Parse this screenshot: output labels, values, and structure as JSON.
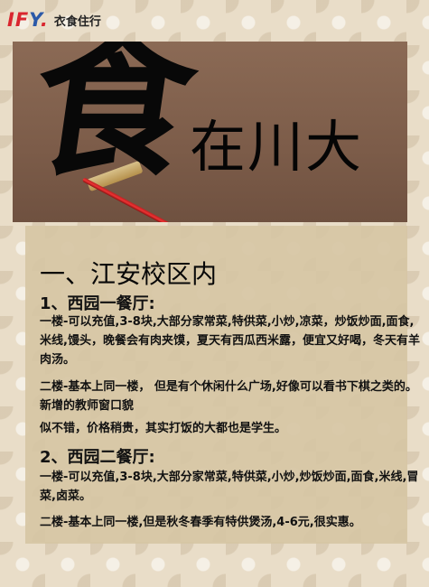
{
  "logo": {
    "mark_letters": "IF",
    "mark_y": "Y",
    "mark_dot": ".",
    "tagline": "衣食住行"
  },
  "banner": {
    "big_char": "食",
    "title": "在川大"
  },
  "section": {
    "heading": "一、江安校区内",
    "canteens": [
      {
        "name": "1、西园一餐厅:",
        "paragraphs": [
          "一楼-可以充值,3-8块,大部分家常菜,特供菜,小炒,凉菜，炒饭炒面,面食,米线,馒头，晚餐会有肉夹馍，夏天有西瓜西米露，便宜又好喝，冬天有羊肉汤。",
          "二楼-基本上同一楼， 但是有个休闲什么广场,好像可以看书下棋之类的。新增的教师窗口貌",
          "似不错，价格稍贵，其实打饭的大都也是学生。"
        ]
      },
      {
        "name": "2、西园二餐厅:",
        "paragraphs": [
          "一楼-可以充值,3-8块,大部分家常菜,特供菜,小炒,炒饭炒面,面食,米线,冒菜,卤菜。",
          "二楼-基本上同一楼,但是秋冬春季有特供煲汤,4-6元,很实惠。"
        ]
      }
    ]
  },
  "colors": {
    "logo_red": "#d9262f",
    "logo_blue": "#2b59a8",
    "banner_bg": "#7c5c49"
  }
}
